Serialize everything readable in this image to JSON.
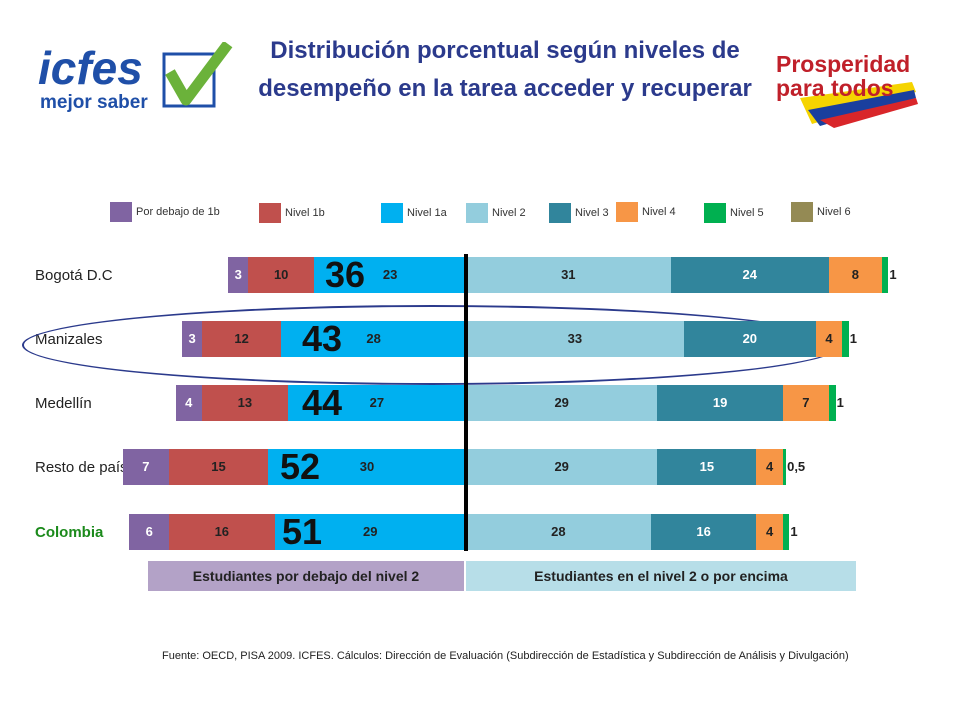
{
  "title": "Distribución porcentual según niveles de desempeño en la tarea acceder y recuperar",
  "logos": {
    "left": {
      "wordmark": "icfes",
      "tagline": "mejor saber"
    },
    "right": {
      "line1": "Prosperidad",
      "line2": "para todos"
    }
  },
  "colors": {
    "debajo1b": "#8064a2",
    "nivel1b": "#c0504d",
    "nivel1a": "#00b0f0",
    "nivel2": "#93cddd",
    "nivel3": "#31859c",
    "nivel4": "#f79646",
    "nivel5": "#00b050",
    "nivel6": "#948a54",
    "title": "#2b3a8c",
    "colombia_label": "#1b8a1b"
  },
  "chart_data": {
    "type": "bar",
    "orientation": "horizontal-diverging",
    "legend": [
      "Por debajo de 1b",
      "Nivel 1b",
      "Nivel 1a",
      "Nivel 2",
      "Nivel 3",
      "Nivel 4",
      "Nivel 5",
      "Nivel 6"
    ],
    "legend_position": "top",
    "categories": [
      "Bogotá D.C",
      "Manizales",
      "Medellín",
      "Resto de país*",
      "Colombia"
    ],
    "series": [
      {
        "name": "Por debajo de 1b",
        "values": [
          3,
          3,
          4,
          7,
          6
        ],
        "labels": [
          "3",
          "3",
          "4",
          "7",
          "6"
        ]
      },
      {
        "name": "Nivel 1b",
        "values": [
          10,
          12,
          13,
          15,
          16
        ],
        "labels": [
          "10",
          "12",
          "13",
          "15",
          "16"
        ]
      },
      {
        "name": "Nivel 1a",
        "values": [
          23,
          28,
          27,
          30,
          29
        ],
        "labels": [
          "23",
          "28",
          "27",
          "30",
          "29"
        ]
      },
      {
        "name": "Nivel 2",
        "values": [
          31,
          33,
          29,
          29,
          28
        ],
        "labels": [
          "31",
          "33",
          "29",
          "29",
          "28"
        ]
      },
      {
        "name": "Nivel 3",
        "values": [
          24,
          20,
          19,
          15,
          16
        ],
        "labels": [
          "24",
          "20",
          "19",
          "15",
          "16"
        ]
      },
      {
        "name": "Nivel 4",
        "values": [
          8,
          4,
          7,
          4,
          4
        ],
        "labels": [
          "8",
          "4",
          "7",
          "4",
          "4"
        ]
      },
      {
        "name": "Nivel 5",
        "values": [
          1,
          1,
          1,
          0.5,
          1
        ],
        "labels": [
          "1",
          "1",
          "1",
          "0,5",
          "1"
        ]
      },
      {
        "name": "Nivel 6",
        "values": [
          0,
          0,
          0,
          0,
          0
        ],
        "labels": [
          "",
          "",
          "",
          "",
          ""
        ]
      }
    ],
    "totals_below_level2": [
      "36",
      "43",
      "44",
      "52",
      "51"
    ],
    "highlighted_category": "Manizales",
    "group_labels": {
      "below": "Estudiantes por debajo del nivel 2",
      "above": "Estudiantes en el nivel 2 o por encima"
    },
    "grid": false
  },
  "source": "Fuente: OECD, PISA 2009. ICFES. Cálculos: Dirección de Evaluación (Subdirección de Estadística y Subdirección de Análisis y Divulgación)"
}
